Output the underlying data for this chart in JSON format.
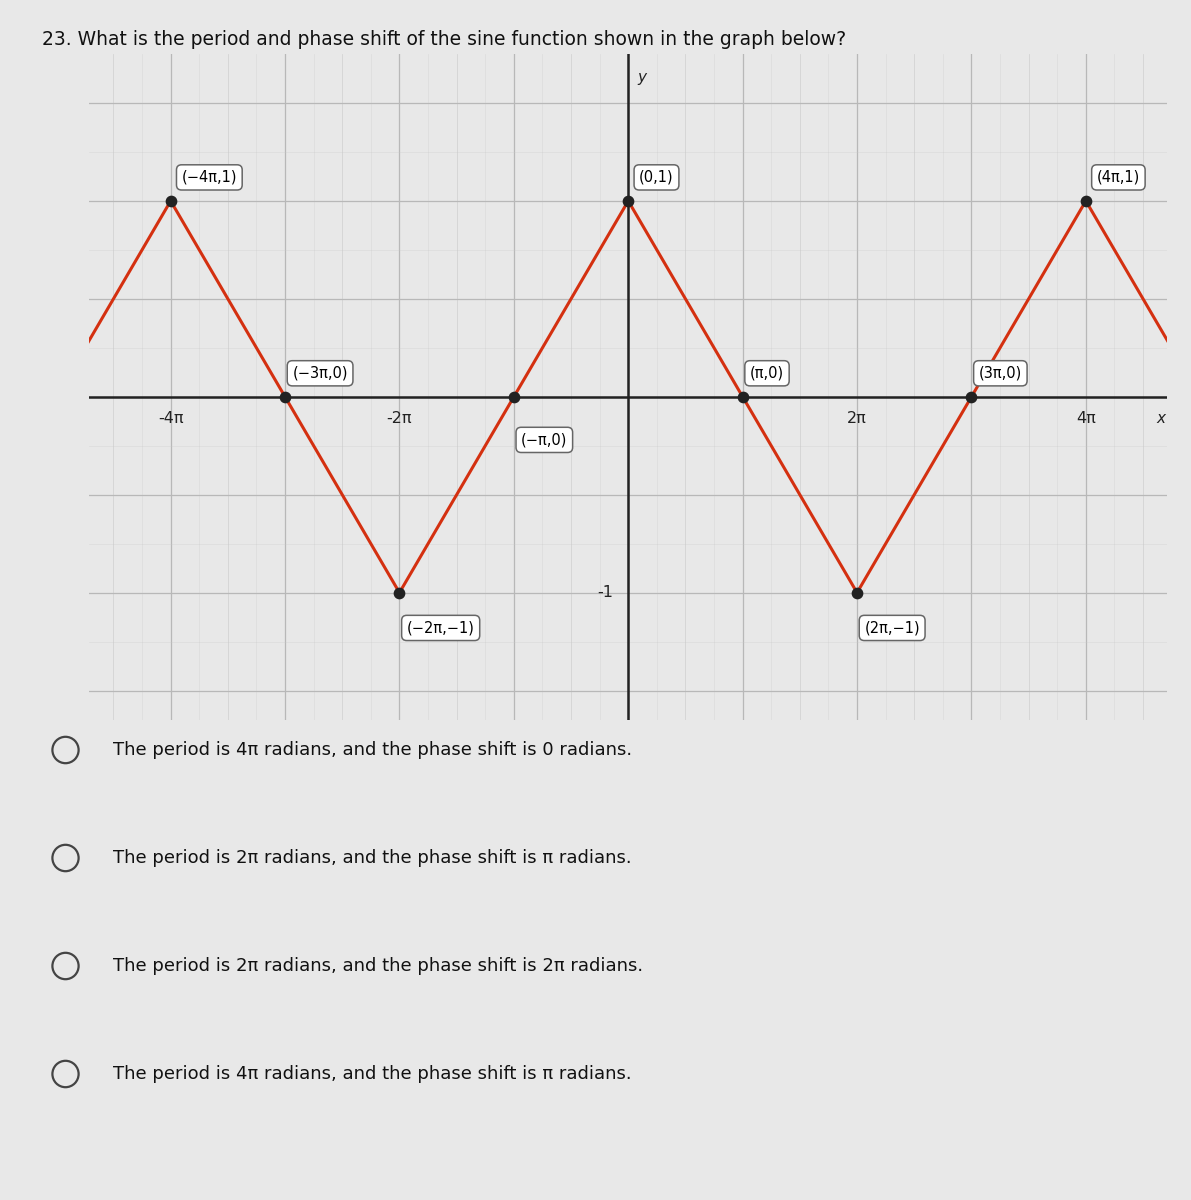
{
  "title": "23. What is the period and phase shift of the sine function shown in the graph below?",
  "title_fontsize": 13.5,
  "background_color": "#e8e8e8",
  "graph_bg_color": "#d8d8d8",
  "grid_color_major": "#b8b8b8",
  "grid_color_minor": "#c8c8c8",
  "axis_color": "#222222",
  "curve_color": "#d43010",
  "curve_linewidth": 2.2,
  "dot_color": "#222222",
  "dot_size": 55,
  "pi": 3.141592653589793,
  "xlim": [
    -14.8,
    14.8
  ],
  "ylim": [
    -1.65,
    1.75
  ],
  "choices": [
    "The period is 4π radians, and the phase shift is 0 radians.",
    "The period is 2π radians, and the phase shift is π radians.",
    "The period is 2π radians, and the phase shift is 2π radians.",
    "The period is 4π radians, and the phase shift is π radians."
  ],
  "choice_fontsize": 13.0,
  "ann_fontsize": 10.5,
  "xtick_label_fontsize": 11.5
}
